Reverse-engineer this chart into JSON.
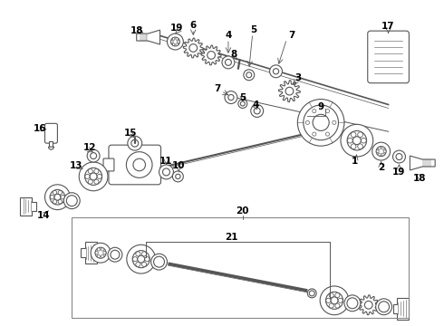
{
  "bg_color": "#ffffff",
  "line_color": "#555555",
  "label_color": "#000000",
  "box_color": "#888888",
  "fig_width": 4.9,
  "fig_height": 3.6,
  "dpi": 100
}
